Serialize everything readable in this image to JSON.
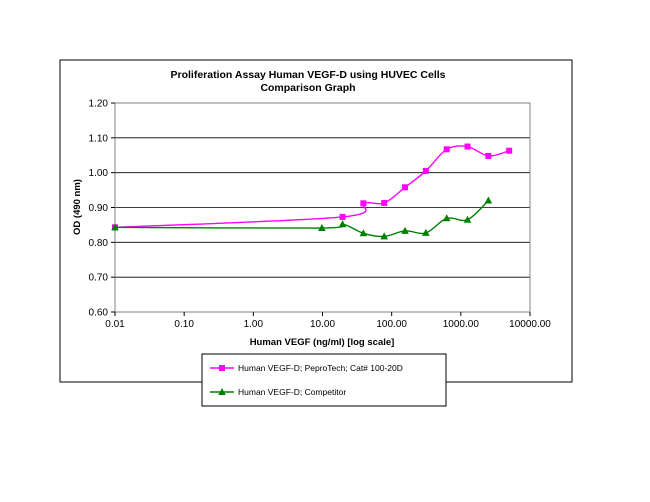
{
  "chart_data": {
    "type": "line",
    "title": "Proliferation Assay Human VEGF-D using HUVEC Cells",
    "subtitle": "Comparison Graph",
    "xlabel": "Human VEGF (ng/ml) [log scale]",
    "ylabel": "OD (490 nm)",
    "x_scale": "log",
    "xlim": [
      0.01,
      10000
    ],
    "ylim": [
      0.6,
      1.2
    ],
    "x_ticks": [
      0.01,
      0.1,
      1,
      10,
      100,
      1000,
      10000
    ],
    "x_tick_labels": [
      "0.01",
      "0.10",
      "1.00",
      "10.00",
      "100.00",
      "1000.00",
      "10000.00"
    ],
    "y_ticks": [
      0.6,
      0.7,
      0.8,
      0.9,
      1.0,
      1.1,
      1.2
    ],
    "y_tick_labels": [
      "0.60",
      "0.70",
      "0.80",
      "0.90",
      "1.00",
      "1.10",
      "1.20"
    ],
    "grid": "horizontal",
    "legend_position": "bottom",
    "series": [
      {
        "name": "Human VEGF-D; PeproTech; Cat# 100-20D",
        "color": "#ff00ff",
        "marker": "square",
        "x": [
          0.01,
          19.5,
          39,
          78,
          156,
          312,
          625,
          1250,
          2500,
          5000
        ],
        "y": [
          0.843,
          0.873,
          0.912,
          0.913,
          0.958,
          1.005,
          1.067,
          1.075,
          1.048,
          1.063
        ]
      },
      {
        "name": "Human VEGF-D; Competitor",
        "color": "#008000",
        "marker": "triangle",
        "x": [
          0.01,
          9.8,
          19.5,
          39,
          78,
          156,
          312,
          625,
          1250,
          2500
        ],
        "y": [
          0.843,
          0.841,
          0.852,
          0.826,
          0.817,
          0.833,
          0.827,
          0.869,
          0.865,
          0.92
        ]
      }
    ]
  }
}
